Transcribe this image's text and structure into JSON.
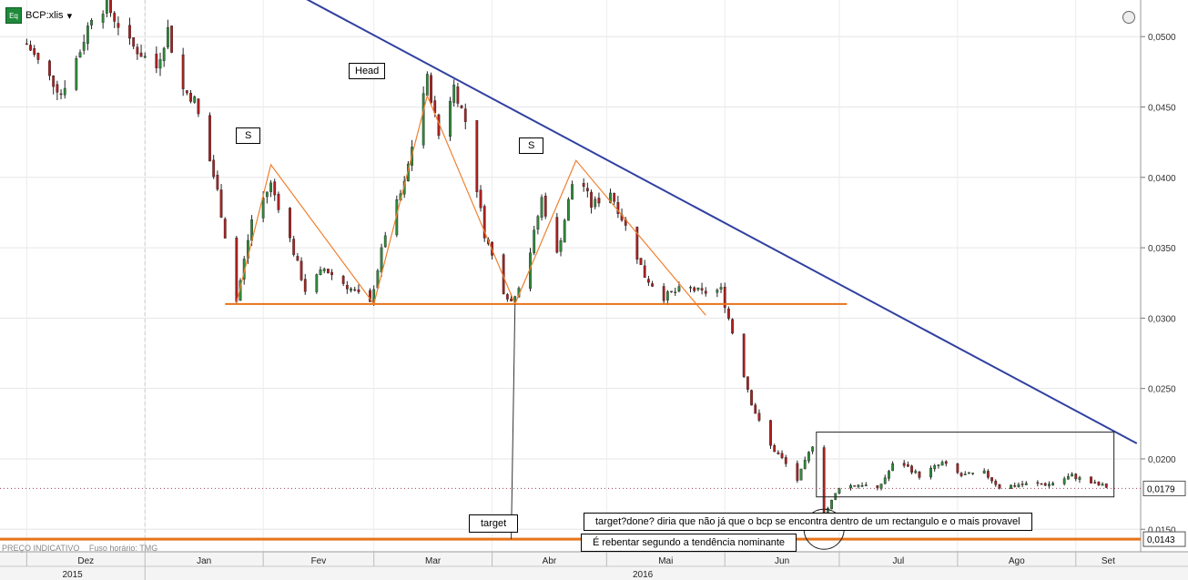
{
  "header": {
    "badge": "Eq",
    "symbol": "BCP:xlis",
    "dropdown_icon": "caret-down-icon",
    "clock_icon": "clock-icon"
  },
  "footer": {
    "price_type": "PREÇO INDICATIVO",
    "timezone": "Fuso horário: TMG"
  },
  "annotations": {
    "head": "Head",
    "left_shoulder": "S",
    "right_shoulder": "S",
    "target": "target",
    "comment_line1": "target?done? diria que não já que o bcp se encontra dentro de um rectangulo e o mais provavel",
    "comment_line2": "É rebentar segundo a tendência nominante"
  },
  "chart_data": {
    "type": "candlestick",
    "y_ticks": [
      "0,0500",
      "0,0450",
      "0,0400",
      "0,0350",
      "0,0300",
      "0,0250",
      "0,0200",
      "0,0150"
    ],
    "ylim": [
      0.0134,
      0.0526
    ],
    "x_months": [
      "Dez",
      "Jan",
      "Fev",
      "Mar",
      "Abr",
      "Mai",
      "Jun",
      "Jul",
      "Ago",
      "Set"
    ],
    "years": [
      "2015",
      "2016"
    ],
    "last_price_label": "0,0179",
    "target_label": "0,0143",
    "price_path": [
      [
        "2015-12-01",
        0.0495
      ],
      [
        "2015-12-05",
        0.0478
      ],
      [
        "2015-12-10",
        0.046
      ],
      [
        "2015-12-15",
        0.049
      ],
      [
        "2015-12-18",
        0.0515
      ],
      [
        "2015-12-22",
        0.0522
      ],
      [
        "2015-12-28",
        0.0495
      ],
      [
        "2016-01-04",
        0.0478
      ],
      [
        "2016-01-07",
        0.0505
      ],
      [
        "2016-01-10",
        0.0465
      ],
      [
        "2016-01-14",
        0.0455
      ],
      [
        "2016-01-20",
        0.039
      ],
      [
        "2016-01-25",
        0.0312
      ],
      [
        "2016-01-29",
        0.037
      ],
      [
        "2016-02-03",
        0.0395
      ],
      [
        "2016-02-07",
        0.0365
      ],
      [
        "2016-02-12",
        0.032
      ],
      [
        "2016-02-17",
        0.0335
      ],
      [
        "2016-02-22",
        0.0325
      ],
      [
        "2016-02-29",
        0.031
      ],
      [
        "2016-03-04",
        0.036
      ],
      [
        "2016-03-09",
        0.0395
      ],
      [
        "2016-03-13",
        0.045
      ],
      [
        "2016-03-15",
        0.047
      ],
      [
        "2016-03-18",
        0.043
      ],
      [
        "2016-03-22",
        0.0465
      ],
      [
        "2016-03-25",
        0.044
      ],
      [
        "2016-03-30",
        0.036
      ],
      [
        "2016-04-04",
        0.032
      ],
      [
        "2016-04-06",
        0.0312
      ],
      [
        "2016-04-10",
        0.0335
      ],
      [
        "2016-04-14",
        0.0385
      ],
      [
        "2016-04-18",
        0.0345
      ],
      [
        "2016-04-23",
        0.0408
      ],
      [
        "2016-04-27",
        0.038
      ],
      [
        "2016-05-02",
        0.039
      ],
      [
        "2016-05-06",
        0.0365
      ],
      [
        "2016-05-11",
        0.033
      ],
      [
        "2016-05-16",
        0.0315
      ],
      [
        "2016-05-22",
        0.0322
      ],
      [
        "2016-05-26",
        0.0318
      ],
      [
        "2016-05-31",
        0.032
      ],
      [
        "2016-06-04",
        0.028
      ],
      [
        "2016-06-08",
        0.024
      ],
      [
        "2016-06-12",
        0.0212
      ],
      [
        "2016-06-16",
        0.02
      ],
      [
        "2016-06-20",
        0.0185
      ],
      [
        "2016-06-24",
        0.021
      ],
      [
        "2016-06-27",
        0.016
      ],
      [
        "2016-07-01",
        0.018
      ],
      [
        "2016-07-07",
        0.0182
      ],
      [
        "2016-07-11",
        0.0178
      ],
      [
        "2016-07-16",
        0.02
      ],
      [
        "2016-07-22",
        0.0188
      ],
      [
        "2016-07-28",
        0.0197
      ],
      [
        "2016-08-02",
        0.0188
      ],
      [
        "2016-08-08",
        0.019
      ],
      [
        "2016-08-12",
        0.018
      ],
      [
        "2016-08-18",
        0.0182
      ],
      [
        "2016-08-25",
        0.0182
      ],
      [
        "2016-08-31",
        0.0188
      ],
      [
        "2016-09-06",
        0.0182
      ],
      [
        "2016-09-11",
        0.0179
      ]
    ],
    "trendlines": {
      "neckline": {
        "y": 0.031,
        "x_from": "2016-01-22",
        "x_to": "2016-07-03"
      },
      "downtrend": {
        "from": [
          "2016-02-10",
          0.053
        ],
        "to": [
          "2016-09-17",
          0.0211
        ]
      },
      "target_level": 0.0143,
      "rectangle": {
        "x_from": "2016-06-25",
        "x_to": "2016-09-11",
        "y_top": 0.0219,
        "y_bottom": 0.0173
      },
      "pattern_path": [
        [
          "2016-01-25",
          0.0311
        ],
        [
          "2016-02-03",
          0.0409
        ],
        [
          "2016-03-01",
          0.031
        ],
        [
          "2016-03-15",
          0.0458
        ],
        [
          "2016-04-07",
          0.031
        ],
        [
          "2016-04-23",
          0.0412
        ],
        [
          "2016-05-27",
          0.0302
        ]
      ]
    }
  }
}
